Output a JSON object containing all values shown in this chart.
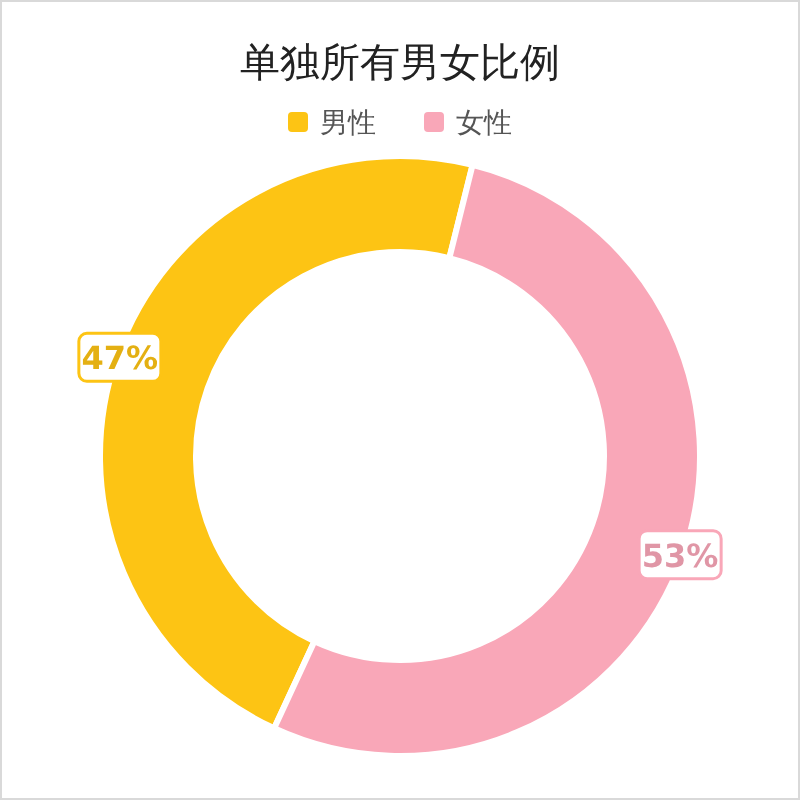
{
  "chart_data": {
    "type": "donut",
    "title": "单独所有男女比例",
    "categories": [
      "男性",
      "女性"
    ],
    "values": [
      47,
      53
    ],
    "colors": [
      "#fdc414",
      "#f9a7b8"
    ],
    "value_labels": [
      "47%",
      "53%"
    ],
    "legend": "top"
  }
}
